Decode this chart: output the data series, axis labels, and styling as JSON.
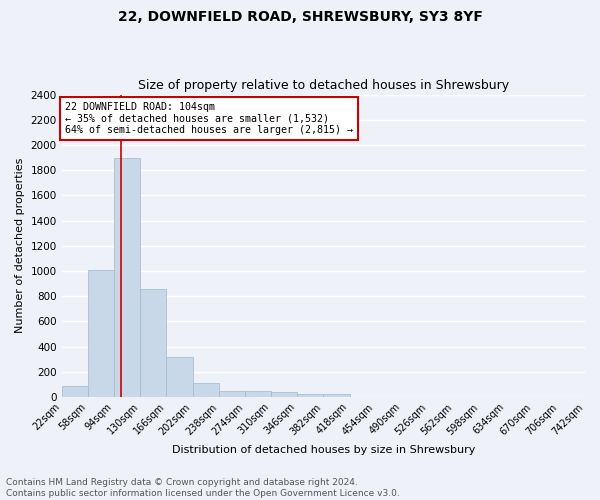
{
  "title1": "22, DOWNFIELD ROAD, SHREWSBURY, SY3 8YF",
  "title2": "Size of property relative to detached houses in Shrewsbury",
  "xlabel": "Distribution of detached houses by size in Shrewsbury",
  "ylabel": "Number of detached properties",
  "footer1": "Contains HM Land Registry data © Crown copyright and database right 2024.",
  "footer2": "Contains public sector information licensed under the Open Government Licence v3.0.",
  "bin_edges": [
    22,
    58,
    94,
    130,
    166,
    202,
    238,
    274,
    310,
    346,
    382,
    418,
    454,
    490,
    526,
    562,
    598,
    634,
    670,
    706,
    742
  ],
  "bar_heights": [
    90,
    1010,
    1900,
    860,
    320,
    110,
    50,
    45,
    35,
    22,
    22,
    0,
    0,
    0,
    0,
    0,
    0,
    0,
    0,
    0
  ],
  "bar_color": "#c8d8e8",
  "bar_edgecolor": "#a0b8cc",
  "red_line_x": 104,
  "annotation_text1": "22 DOWNFIELD ROAD: 104sqm",
  "annotation_text2": "← 35% of detached houses are smaller (1,532)",
  "annotation_text3": "64% of semi-detached houses are larger (2,815) →",
  "annotation_box_color": "#ffffff",
  "annotation_box_edgecolor": "#cc0000",
  "red_line_color": "#cc0000",
  "ylim": [
    0,
    2400
  ],
  "yticks": [
    0,
    200,
    400,
    600,
    800,
    1000,
    1200,
    1400,
    1600,
    1800,
    2000,
    2200,
    2400
  ],
  "bg_color": "#eef2f8",
  "grid_color": "#ffffff",
  "title1_fontsize": 10,
  "title2_fontsize": 9,
  "ylabel_fontsize": 8,
  "xlabel_fontsize": 8,
  "tick_fontsize": 7,
  "footer_fontsize": 6.5
}
